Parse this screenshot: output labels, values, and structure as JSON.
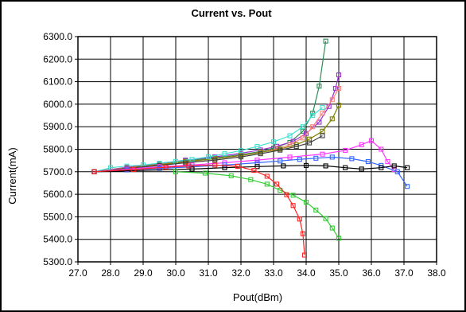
{
  "chart_data": {
    "type": "line",
    "title": "Current vs. Pout",
    "xlabel": "Pout(dBm)",
    "ylabel": "Current(mA)",
    "xlim": [
      27.0,
      38.0
    ],
    "ylim": [
      5300.0,
      6300.0
    ],
    "x_ticks": [
      "27.0",
      "28.0",
      "29.0",
      "30.0",
      "31.0",
      "32.0",
      "33.0",
      "34.0",
      "35.0",
      "36.0",
      "37.0",
      "38.0"
    ],
    "y_ticks": [
      "5300.0",
      "5400.0",
      "5500.0",
      "5600.0",
      "5700.0",
      "5800.0",
      "5900.0",
      "6000.0",
      "6100.0",
      "6200.0",
      "6300.0"
    ],
    "grid": true,
    "marker": "square",
    "series": [
      {
        "color": "#2e8b57",
        "points": [
          [
            27.5,
            5700
          ],
          [
            28.5,
            5718
          ],
          [
            29.5,
            5733
          ],
          [
            30.3,
            5748
          ],
          [
            31.2,
            5762
          ],
          [
            32.0,
            5776
          ],
          [
            32.6,
            5790
          ],
          [
            33.0,
            5805
          ],
          [
            33.5,
            5830
          ],
          [
            33.9,
            5880
          ],
          [
            34.2,
            5960
          ],
          [
            34.4,
            6080
          ],
          [
            34.6,
            6280
          ]
        ]
      },
      {
        "color": "#9932cc",
        "points": [
          [
            27.5,
            5700
          ],
          [
            28.5,
            5720
          ],
          [
            29.5,
            5737
          ],
          [
            30.3,
            5752
          ],
          [
            31.2,
            5766
          ],
          [
            32.0,
            5782
          ],
          [
            32.6,
            5797
          ],
          [
            33.1,
            5813
          ],
          [
            33.6,
            5835
          ],
          [
            34.0,
            5870
          ],
          [
            34.4,
            5920
          ],
          [
            34.7,
            5990
          ],
          [
            34.9,
            6070
          ],
          [
            35.0,
            6130
          ]
        ]
      },
      {
        "color": "#ff7f7f",
        "points": [
          [
            27.5,
            5700
          ],
          [
            28.5,
            5718
          ],
          [
            29.5,
            5732
          ],
          [
            30.3,
            5745
          ],
          [
            31.2,
            5758
          ],
          [
            32.0,
            5772
          ],
          [
            32.6,
            5787
          ],
          [
            33.1,
            5802
          ],
          [
            33.5,
            5820
          ],
          [
            33.9,
            5850
          ],
          [
            34.2,
            5900
          ],
          [
            34.5,
            5960
          ],
          [
            34.8,
            6020
          ],
          [
            35.0,
            6070
          ]
        ]
      },
      {
        "color": "#808000",
        "points": [
          [
            27.5,
            5700
          ],
          [
            28.5,
            5717
          ],
          [
            29.5,
            5731
          ],
          [
            30.3,
            5745
          ],
          [
            31.2,
            5758
          ],
          [
            32.0,
            5772
          ],
          [
            32.6,
            5786
          ],
          [
            33.2,
            5801
          ],
          [
            33.7,
            5820
          ],
          [
            34.1,
            5845
          ],
          [
            34.5,
            5880
          ],
          [
            34.8,
            5935
          ],
          [
            35.0,
            5995
          ]
        ]
      },
      {
        "color": "#40e0d0",
        "points": [
          [
            27.5,
            5700
          ],
          [
            28.0,
            5718
          ],
          [
            28.5,
            5725
          ],
          [
            29.0,
            5730
          ],
          [
            29.5,
            5738
          ],
          [
            30.0,
            5746
          ],
          [
            30.5,
            5755
          ],
          [
            31.0,
            5766
          ],
          [
            31.5,
            5780
          ],
          [
            32.0,
            5794
          ],
          [
            32.5,
            5812
          ],
          [
            33.0,
            5833
          ],
          [
            33.5,
            5860
          ],
          [
            33.9,
            5900
          ],
          [
            34.2,
            5950
          ],
          [
            34.5,
            5985
          ]
        ]
      },
      {
        "color": "#404040",
        "points": [
          [
            27.5,
            5700
          ],
          [
            28.5,
            5715
          ],
          [
            29.5,
            5728
          ],
          [
            30.3,
            5740
          ],
          [
            31.2,
            5752
          ],
          [
            32.0,
            5766
          ],
          [
            32.6,
            5780
          ],
          [
            33.2,
            5796
          ],
          [
            33.7,
            5812
          ],
          [
            34.1,
            5828
          ],
          [
            34.5,
            5860
          ]
        ]
      },
      {
        "color": "#ff33ff",
        "points": [
          [
            27.5,
            5700
          ],
          [
            28.5,
            5712
          ],
          [
            29.5,
            5722
          ],
          [
            30.5,
            5730
          ],
          [
            31.5,
            5740
          ],
          [
            32.5,
            5752
          ],
          [
            33.5,
            5765
          ],
          [
            34.5,
            5778
          ],
          [
            35.2,
            5795
          ],
          [
            35.7,
            5820
          ],
          [
            36.0,
            5838
          ],
          [
            36.3,
            5800
          ],
          [
            36.5,
            5745
          ],
          [
            36.7,
            5710
          ]
        ]
      },
      {
        "color": "#3366ff",
        "points": [
          [
            27.5,
            5700
          ],
          [
            28.5,
            5708
          ],
          [
            29.5,
            5715
          ],
          [
            30.5,
            5722
          ],
          [
            31.5,
            5730
          ],
          [
            32.5,
            5740
          ],
          [
            33.2,
            5748
          ],
          [
            33.8,
            5755
          ],
          [
            34.3,
            5760
          ],
          [
            34.8,
            5765
          ],
          [
            35.4,
            5758
          ],
          [
            35.9,
            5745
          ],
          [
            36.3,
            5728
          ],
          [
            36.8,
            5700
          ],
          [
            37.1,
            5635
          ]
        ]
      },
      {
        "color": "#000000",
        "points": [
          [
            27.5,
            5700
          ],
          [
            30.5,
            5712
          ],
          [
            31.5,
            5718
          ],
          [
            32.5,
            5723
          ],
          [
            33.3,
            5726
          ],
          [
            34.0,
            5728
          ],
          [
            34.6,
            5726
          ],
          [
            35.2,
            5718
          ],
          [
            35.7,
            5712
          ],
          [
            36.3,
            5718
          ],
          [
            36.7,
            5726
          ],
          [
            37.1,
            5718
          ]
        ]
      },
      {
        "color": "#33cc33",
        "points": [
          [
            30.0,
            5700
          ],
          [
            30.9,
            5694
          ],
          [
            31.7,
            5682
          ],
          [
            32.3,
            5665
          ],
          [
            32.8,
            5645
          ],
          [
            33.2,
            5618
          ],
          [
            33.6,
            5596
          ],
          [
            34.0,
            5565
          ],
          [
            34.3,
            5530
          ],
          [
            34.6,
            5492
          ],
          [
            34.8,
            5450
          ],
          [
            35.0,
            5405
          ]
        ]
      },
      {
        "color": "#ff2222",
        "points": [
          [
            27.5,
            5700
          ],
          [
            28.7,
            5710
          ],
          [
            29.7,
            5720
          ],
          [
            30.4,
            5726
          ],
          [
            31.2,
            5730
          ],
          [
            31.9,
            5724
          ],
          [
            32.4,
            5706
          ],
          [
            32.8,
            5680
          ],
          [
            33.1,
            5645
          ],
          [
            33.4,
            5598
          ],
          [
            33.6,
            5550
          ],
          [
            33.8,
            5490
          ],
          [
            33.9,
            5425
          ],
          [
            33.95,
            5330
          ]
        ]
      }
    ]
  }
}
